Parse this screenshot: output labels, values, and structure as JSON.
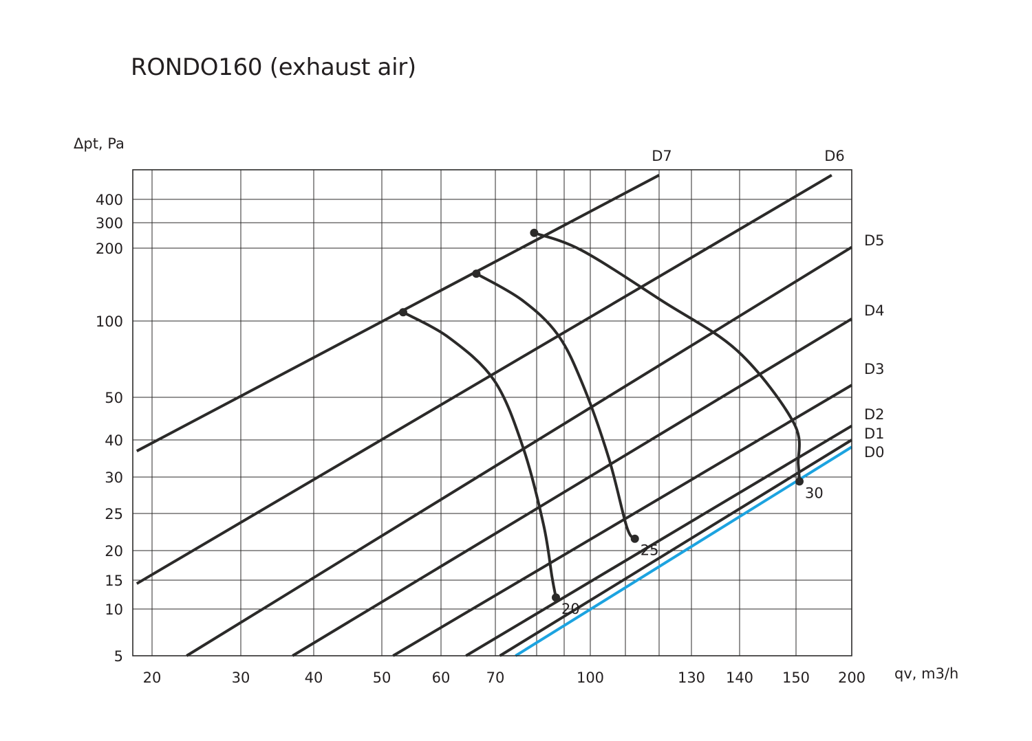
{
  "chart_data": {
    "type": "line",
    "title": "RONDO160 (exhaust air)",
    "ylabel": "Δpt, Pa",
    "xlabel": "qv, m3/h",
    "x_tick_labels": [
      "20",
      "30",
      "40",
      "50",
      "60",
      "70",
      "100",
      "130",
      "140",
      "150",
      "200"
    ],
    "y_tick_labels": [
      "400",
      "300",
      "200",
      "100",
      "50",
      "40",
      "30",
      "25",
      "20",
      "15",
      "10",
      "5"
    ],
    "grid": true,
    "series": [
      {
        "name": "D7",
        "points": [
          [
            17.6,
            37
          ],
          [
            120,
            480
          ]
        ]
      },
      {
        "name": "D6",
        "points": [
          [
            17.6,
            14.4
          ],
          [
            182,
            480
          ]
        ]
      },
      {
        "name": "D5",
        "points": [
          [
            23.9,
            5
          ],
          [
            200,
            204
          ]
        ]
      },
      {
        "name": "D4",
        "points": [
          [
            37.1,
            5
          ],
          [
            200,
            103
          ]
        ]
      },
      {
        "name": "D3",
        "points": [
          [
            51.9,
            5
          ],
          [
            200,
            58
          ]
        ]
      },
      {
        "name": "D2",
        "points": [
          [
            64.6,
            5
          ],
          [
            200,
            43.3
          ]
        ]
      },
      {
        "name": "D1",
        "points": [
          [
            71.1,
            5
          ],
          [
            200,
            40
          ]
        ]
      },
      {
        "name": "D0",
        "points": [
          [
            74.9,
            5
          ],
          [
            200,
            38.1
          ]
        ]
      }
    ],
    "highlight_series": "D0",
    "highlight_color": "#1ca3e0",
    "line_color": "#2b2a29",
    "grid_color": "#2b2a29",
    "velocity_curves": [
      {
        "label": "20",
        "points": [
          [
            53.6,
            112
          ],
          [
            61.5,
            89
          ],
          [
            69.8,
            61
          ],
          [
            76.7,
            38
          ],
          [
            82.5,
            23.5
          ],
          [
            85.6,
            15.5
          ],
          [
            87.0,
            12.0
          ]
        ]
      },
      {
        "label": "25",
        "points": [
          [
            66.5,
            165
          ],
          [
            76.4,
            129
          ],
          [
            87.7,
            91
          ],
          [
            97.2,
            58
          ],
          [
            105.3,
            35
          ],
          [
            110.4,
            23.2
          ],
          [
            112.8,
            21.6
          ]
        ]
      },
      {
        "label": "30",
        "points": [
          [
            79.4,
            260
          ],
          [
            96.7,
            197
          ],
          [
            120.8,
            128
          ],
          [
            139.7,
            80
          ],
          [
            149.6,
            44
          ],
          [
            152.0,
            33.5
          ],
          [
            153.1,
            29.4
          ]
        ]
      }
    ]
  }
}
